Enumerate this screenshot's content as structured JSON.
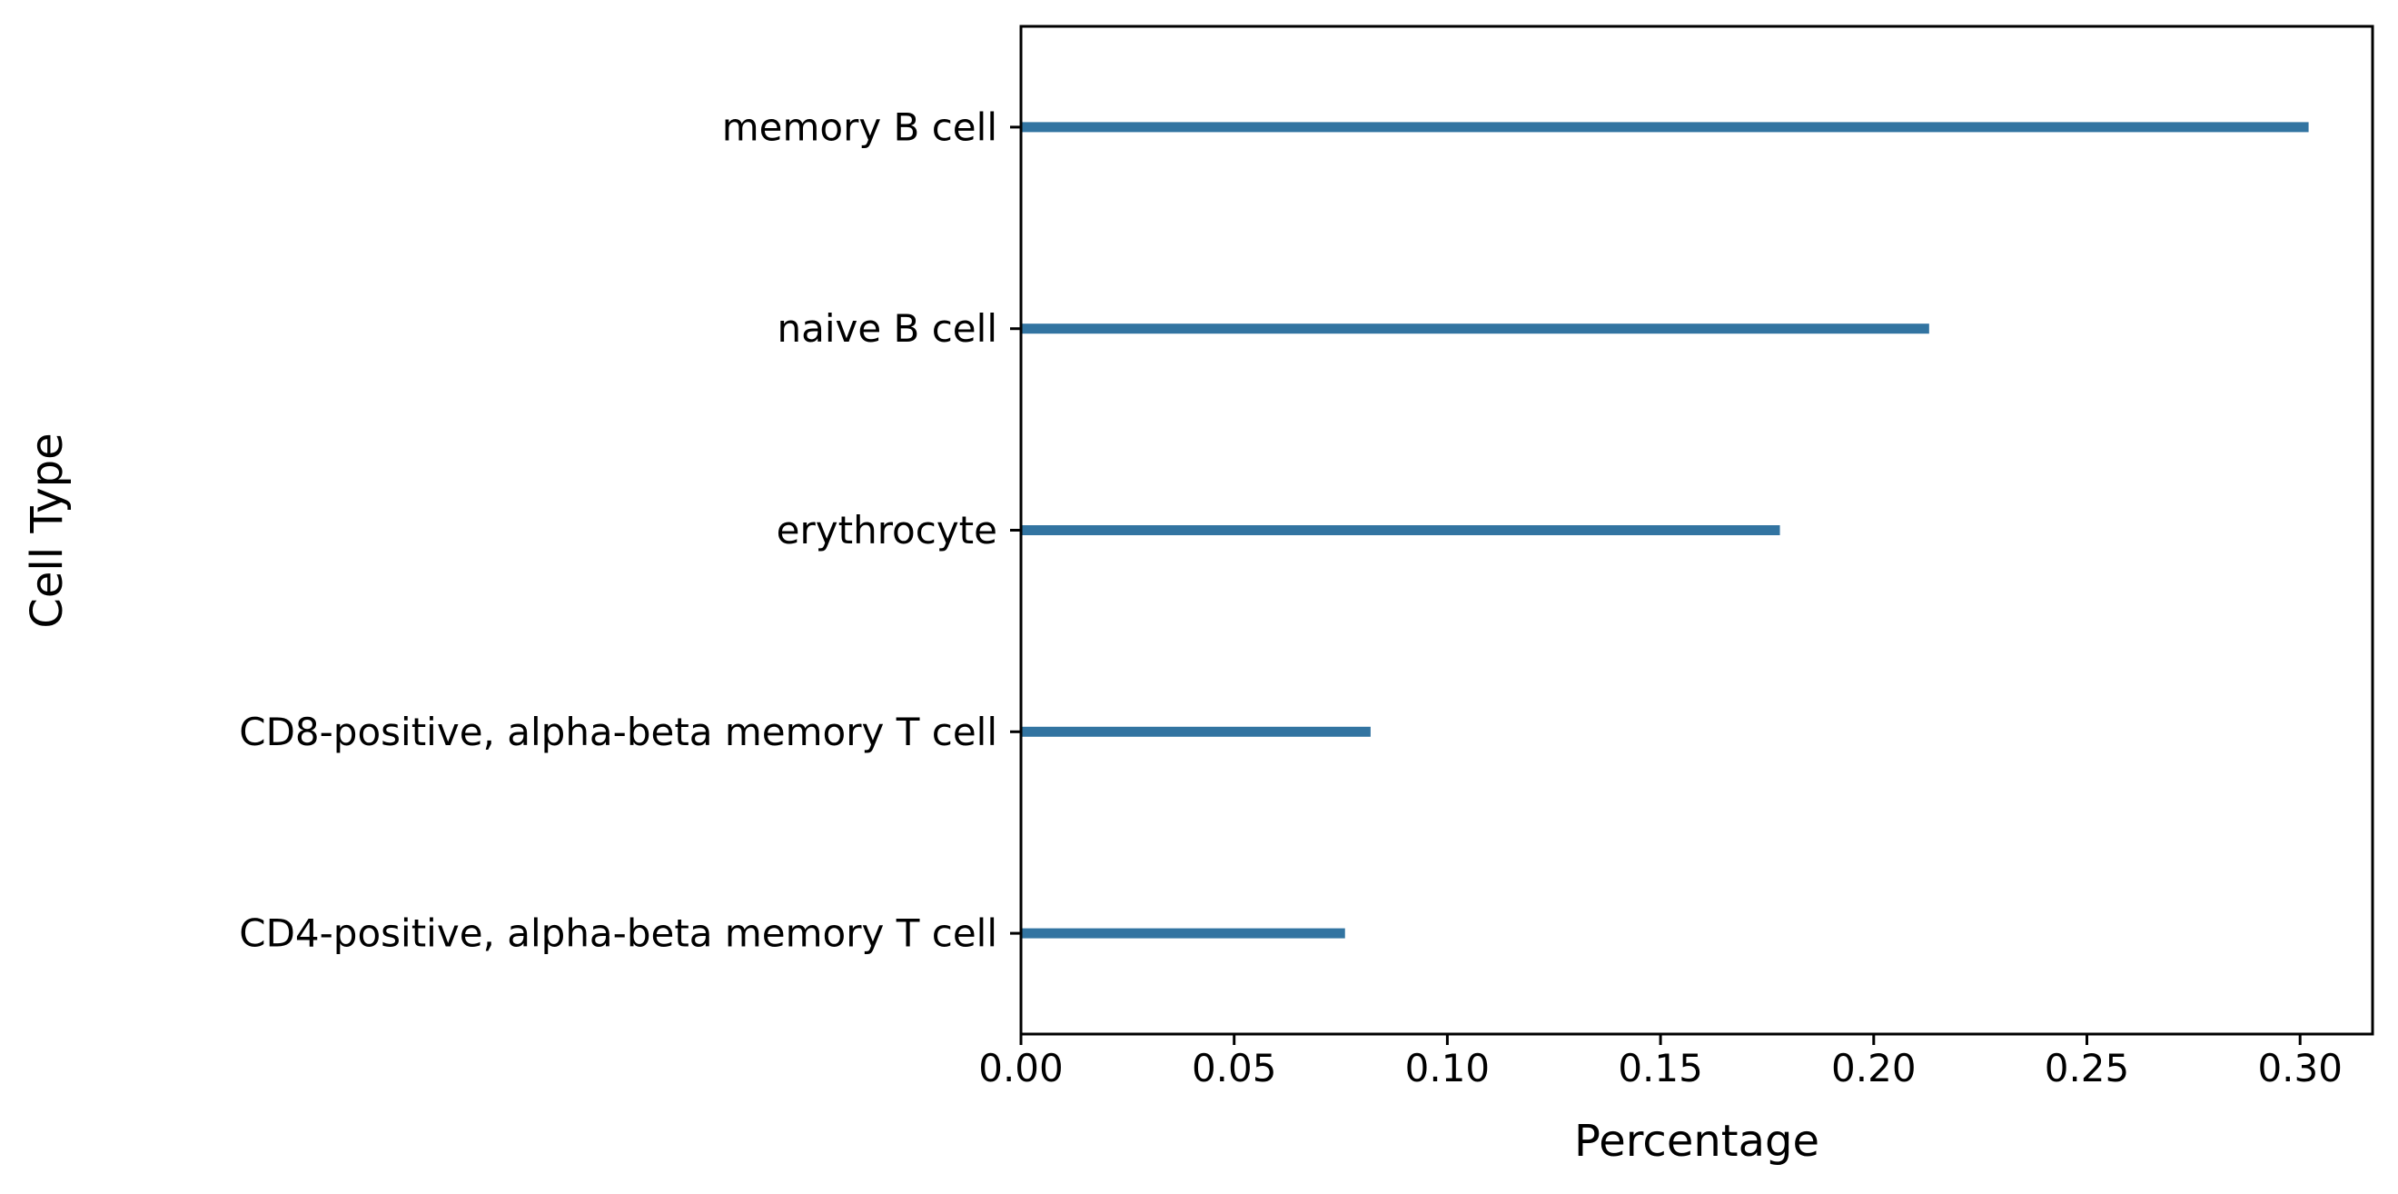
{
  "chart_data": {
    "type": "bar",
    "orientation": "horizontal",
    "title": "",
    "xlabel": "Percentage",
    "ylabel": "Cell Type",
    "categories": [
      "memory B cell",
      "naive B cell",
      "erythrocyte",
      "CD8-positive, alpha-beta memory T cell",
      "CD4-positive, alpha-beta memory T cell"
    ],
    "values": [
      0.302,
      0.213,
      0.178,
      0.082,
      0.076
    ],
    "xlim": [
      0,
      0.317
    ],
    "xticks": [
      0.0,
      0.05,
      0.1,
      0.15,
      0.2,
      0.25,
      0.3
    ],
    "xtick_labels": [
      "0.00",
      "0.05",
      "0.10",
      "0.15",
      "0.20",
      "0.25",
      "0.30"
    ],
    "grid": false,
    "legend": "none",
    "bar_color": "#3274a1"
  }
}
